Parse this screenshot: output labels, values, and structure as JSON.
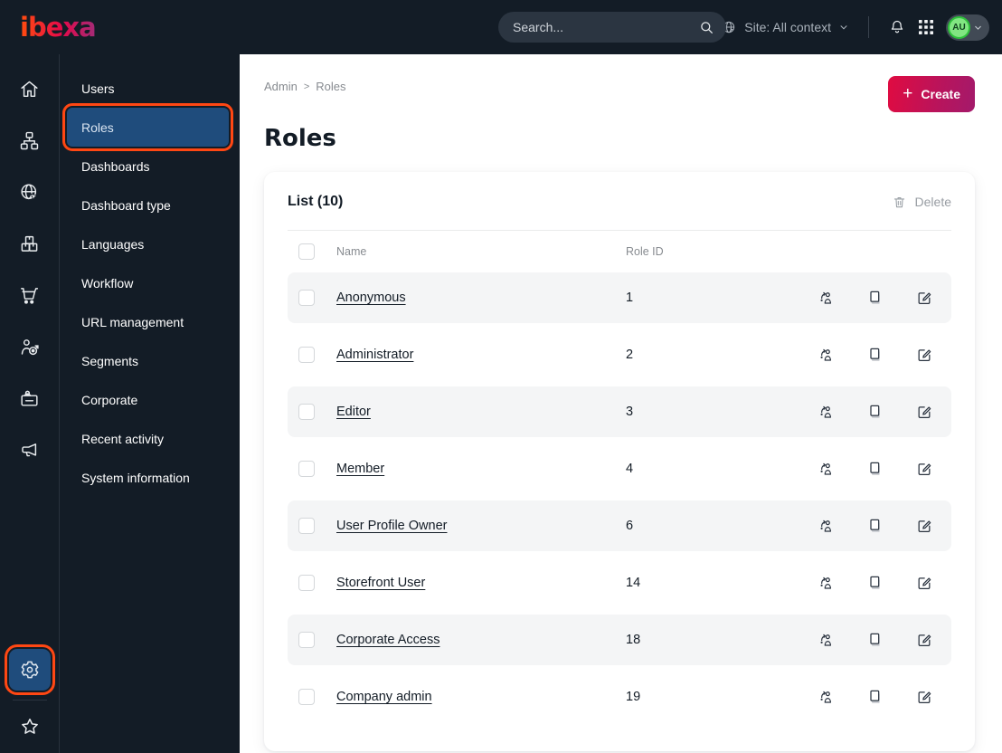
{
  "colors": {
    "topbar_bg": "#131c26",
    "selected_blue": "#1f4c7c",
    "annotation_orange": "#ff4713",
    "create_gradient_start": "#e00b41",
    "create_gradient_end": "#a31a6b",
    "avatar_green": "#82e682",
    "muted_text": "#878b90",
    "stripe_gray": "#f4f5f6"
  },
  "topbar": {
    "logo_text": "ibexa",
    "search_placeholder": "Search...",
    "site_context_label": "Site: All context",
    "avatar_initials": "AU",
    "icons": [
      "search-icon",
      "globe-icon",
      "chevron-down-icon",
      "bell-icon",
      "app-grid-icon"
    ]
  },
  "rail_icons": [
    "home-icon",
    "sitemap-icon",
    "globe-cursor-icon",
    "packages-icon",
    "cart-icon",
    "person-target-icon",
    "id-badge-icon",
    "megaphone-icon",
    "gear-icon",
    "star-icon"
  ],
  "menu": {
    "items": [
      "Users",
      "Roles",
      "Dashboards",
      "Dashboard type",
      "Languages",
      "Workflow",
      "URL management",
      "Segments",
      "Corporate",
      "Recent activity",
      "System information"
    ],
    "selected": "Roles"
  },
  "breadcrumb": [
    "Admin",
    "Roles"
  ],
  "breadcrumb_separator": ">",
  "page": {
    "title": "Roles",
    "create_label": "Create",
    "create_plus": "+"
  },
  "list": {
    "title": "List (10)",
    "delete_label": "Delete",
    "columns": [
      "Name",
      "Role ID"
    ],
    "row_action_icons": [
      "assign-user-icon",
      "copy-icon",
      "edit-icon"
    ],
    "rows": [
      {
        "name": "Anonymous",
        "role_id": "1"
      },
      {
        "name": "Administrator",
        "role_id": "2"
      },
      {
        "name": "Editor",
        "role_id": "3"
      },
      {
        "name": "Member",
        "role_id": "4"
      },
      {
        "name": "User Profile Owner",
        "role_id": "6"
      },
      {
        "name": "Storefront User",
        "role_id": "14"
      },
      {
        "name": "Corporate Access",
        "role_id": "18"
      },
      {
        "name": "Company admin",
        "role_id": "19"
      }
    ]
  }
}
